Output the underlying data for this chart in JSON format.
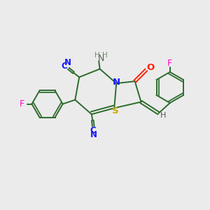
{
  "bg_color": "#ebebeb",
  "bond_color": "#2d6b2d",
  "n_color": "#1a1aff",
  "s_color": "#ccaa00",
  "o_color": "#ff2200",
  "f_color": "#ff00cc",
  "cn_color": "#1a1aff",
  "nh2_h_color": "#778877",
  "nh2_n_color": "#556655",
  "h_color": "#555555",
  "fig_size": [
    3.0,
    3.0
  ],
  "dpi": 100,
  "xlim": [
    0,
    10
  ],
  "ylim": [
    0,
    10
  ]
}
